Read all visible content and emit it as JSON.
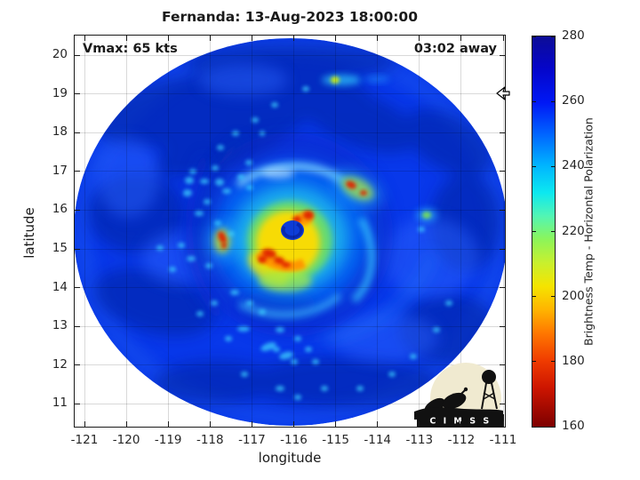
{
  "chart_data": {
    "type": "heatmap",
    "title": "Fernanda: 13-Aug-2023 18:00:00",
    "xlabel": "longitude",
    "ylabel": "latitude",
    "x_ticks": [
      -121,
      -120,
      -119,
      -118,
      -117,
      -116,
      -115,
      -114,
      -113,
      -112,
      -111
    ],
    "y_ticks": [
      20,
      19,
      18,
      17,
      16,
      15,
      14,
      13,
      12,
      11
    ],
    "xlim": [
      -121.25,
      -110.95
    ],
    "ylim": [
      10.4,
      20.5
    ],
    "grid": true,
    "annotations": {
      "vmax": "Vmax: 65 kts",
      "time_offset": "03:02 away"
    },
    "colorbar": {
      "label": "Brightness Temp - Horizontal Polarization",
      "min": 160,
      "max": 280,
      "ticks": [
        280,
        260,
        240,
        220,
        200,
        180,
        160
      ],
      "colormap": "jet (high=blue, low=red)",
      "stops": [
        {
          "pos": 0,
          "color": "#0d0d96"
        },
        {
          "pos": 8,
          "color": "#0505c8"
        },
        {
          "pos": 17,
          "color": "#0018f5"
        },
        {
          "pos": 25,
          "color": "#0064ff"
        },
        {
          "pos": 33,
          "color": "#00b4ff"
        },
        {
          "pos": 40,
          "color": "#0ce8f0"
        },
        {
          "pos": 46,
          "color": "#52f5b4"
        },
        {
          "pos": 52,
          "color": "#8cf55a"
        },
        {
          "pos": 58,
          "color": "#c8f02e"
        },
        {
          "pos": 64,
          "color": "#f5e400"
        },
        {
          "pos": 70,
          "color": "#ffb400"
        },
        {
          "pos": 76,
          "color": "#ff7800"
        },
        {
          "pos": 83,
          "color": "#f03c00"
        },
        {
          "pos": 90,
          "color": "#cd1500"
        },
        {
          "pos": 100,
          "color": "#7d0000"
        }
      ]
    },
    "swath": {
      "shape": "circular",
      "center_lon": -116.0,
      "center_lat": 15.35,
      "radius_deg": 5.2,
      "ambient_brightness_temp_K": 255
    },
    "storm_features": [
      {
        "name": "eye",
        "lon": -116.0,
        "lat": 15.45,
        "approx_value_K": 258
      },
      {
        "name": "eyewall-convection-ring",
        "lon": -116.1,
        "lat": 15.2,
        "approx_min_value_K": 170
      },
      {
        "name": "inner-band-cell-NE",
        "lon": -114.6,
        "lat": 16.65,
        "approx_min_value_K": 180
      },
      {
        "name": "band-cell-W",
        "lon": -117.7,
        "lat": 15.3,
        "approx_min_value_K": 185
      },
      {
        "name": "cell-N",
        "lon": -115.0,
        "lat": 19.35,
        "approx_min_value_K": 205
      },
      {
        "name": "cell-E",
        "lon": -112.8,
        "lat": 15.9,
        "approx_min_value_K": 215
      }
    ]
  },
  "logo": {
    "text": "C I M S S"
  }
}
